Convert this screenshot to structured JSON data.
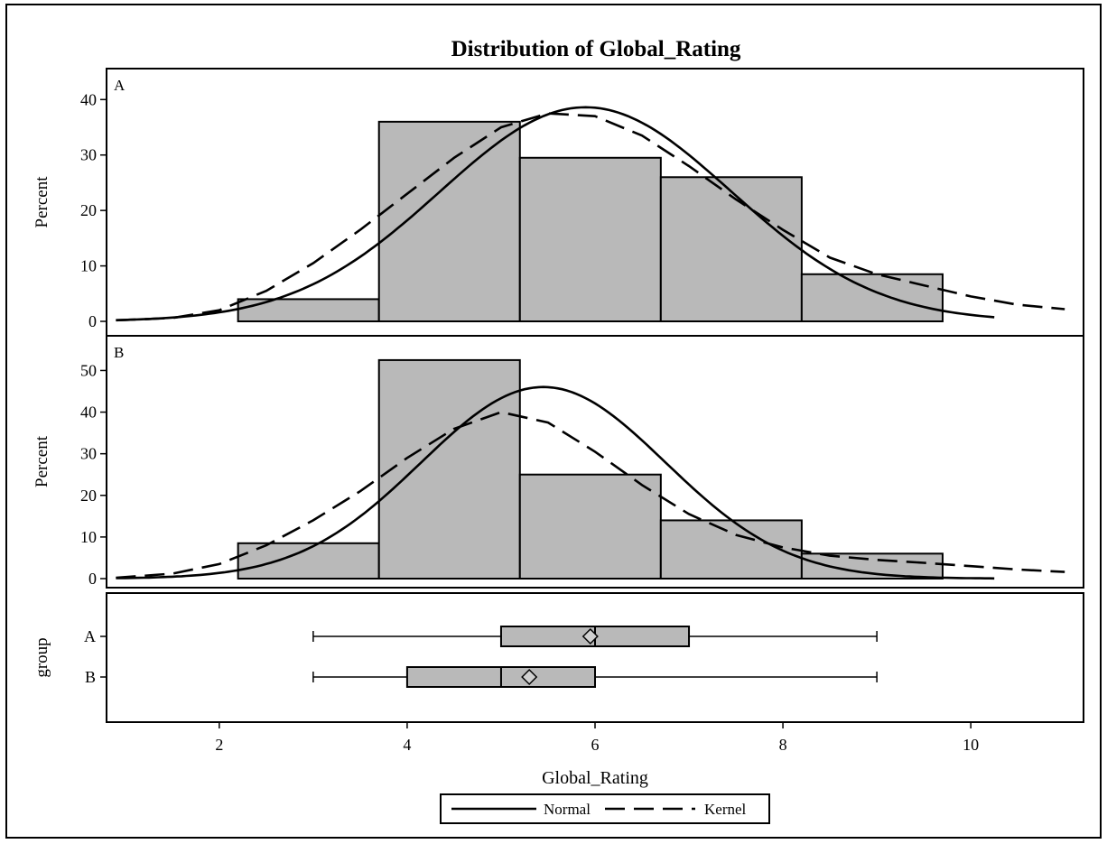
{
  "chart_data": {
    "type": "histogram-panel",
    "title": "Distribution of Global_Rating",
    "xlabel": "Global_Rating",
    "xlim": [
      0.8,
      11.2
    ],
    "xticks": [
      "2",
      "4",
      "6",
      "8",
      "10"
    ],
    "xtick_values": [
      2,
      4,
      6,
      8,
      10
    ],
    "bin_edges": [
      2.2,
      3.7,
      5.2,
      6.7,
      8.2,
      9.7
    ],
    "panels": [
      {
        "label": "A",
        "ylabel": "Percent",
        "ylim": [
          0,
          42
        ],
        "yticks": [
          "0",
          "10",
          "20",
          "30",
          "40"
        ],
        "ytick_values": [
          0,
          10,
          20,
          30,
          40
        ],
        "bin_values": [
          4,
          36,
          29.5,
          26,
          8.5
        ],
        "normal": {
          "mean": 5.9,
          "sd": 1.55
        },
        "kernel_points": [
          [
            0.9,
            0.2
          ],
          [
            1.5,
            0.6
          ],
          [
            2.0,
            2
          ],
          [
            2.5,
            5.5
          ],
          [
            3.0,
            10.5
          ],
          [
            3.5,
            16.5
          ],
          [
            4.0,
            23
          ],
          [
            4.5,
            29.5
          ],
          [
            5.0,
            35
          ],
          [
            5.5,
            37.5
          ],
          [
            6.0,
            37
          ],
          [
            6.5,
            33.5
          ],
          [
            7.0,
            28
          ],
          [
            7.5,
            22
          ],
          [
            8.0,
            16.5
          ],
          [
            8.5,
            11.5
          ],
          [
            9.0,
            8.5
          ],
          [
            9.5,
            6.5
          ],
          [
            10.0,
            4.5
          ],
          [
            10.5,
            3
          ],
          [
            11.0,
            2.2
          ]
        ]
      },
      {
        "label": "B",
        "ylabel": "Percent",
        "ylim": [
          0,
          54
        ],
        "yticks": [
          "0",
          "10",
          "20",
          "30",
          "40",
          "50"
        ],
        "ytick_values": [
          0,
          10,
          20,
          30,
          40,
          50
        ],
        "bin_values": [
          8.5,
          52.5,
          25,
          14,
          6
        ],
        "normal": {
          "mean": 5.45,
          "sd": 1.3
        },
        "kernel_points": [
          [
            0.9,
            0.2
          ],
          [
            1.5,
            1.2
          ],
          [
            2.0,
            3.5
          ],
          [
            2.5,
            8
          ],
          [
            3.0,
            14
          ],
          [
            3.5,
            21
          ],
          [
            4.0,
            29
          ],
          [
            4.5,
            36
          ],
          [
            5.0,
            40
          ],
          [
            5.5,
            37.5
          ],
          [
            6.0,
            30.5
          ],
          [
            6.5,
            22.5
          ],
          [
            7.0,
            15.5
          ],
          [
            7.5,
            10.5
          ],
          [
            8.0,
            7.5
          ],
          [
            8.5,
            5.5
          ],
          [
            9.0,
            4.5
          ],
          [
            9.5,
            3.8
          ],
          [
            10.0,
            3
          ],
          [
            10.5,
            2.2
          ],
          [
            11.0,
            1.6
          ]
        ]
      }
    ],
    "boxplot": {
      "ylabel": "group",
      "groups": [
        {
          "label": "A",
          "min": 3,
          "q1": 5,
          "median": 6,
          "q3": 7,
          "max": 9,
          "mean": 5.95
        },
        {
          "label": "B",
          "min": 3,
          "q1": 4,
          "median": 5,
          "q3": 6,
          "max": 9,
          "mean": 5.3
        }
      ]
    },
    "legend": {
      "position": "bottom-center",
      "items": [
        "Normal",
        "Kernel"
      ]
    },
    "colors": {
      "bar_fill": "#b9b9b9",
      "line": "#000000"
    }
  }
}
